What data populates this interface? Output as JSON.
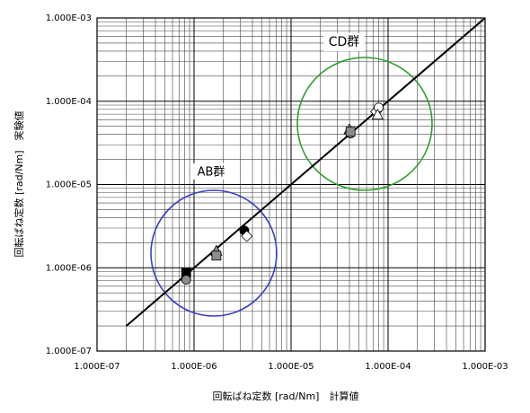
{
  "chart_data": {
    "type": "scatter",
    "log_scale": {
      "x": true,
      "y": true
    },
    "grid": true,
    "x_label": "回転ばね定数 [rad/Nm]　計算値",
    "y_label": "回転ばね定数 [rad/Nm]　実験値",
    "annotations": [
      "AB群",
      "CD群"
    ],
    "annotation_colors": [
      "#3a3fc4",
      "#2aa02a"
    ],
    "xlim": [
      1e-07,
      0.001
    ],
    "ylim": [
      1e-07,
      0.001
    ],
    "xticks": [
      {
        "value": 1e-07,
        "label": "1.000E-07"
      },
      {
        "value": 1e-06,
        "label": "1.000E-06"
      },
      {
        "value": 1e-05,
        "label": "1.000E-05"
      },
      {
        "value": 0.0001,
        "label": "1.000E-04"
      },
      {
        "value": 0.001,
        "label": "1.000E-03"
      }
    ],
    "yticks": [
      {
        "value": 1e-07,
        "label": "1.000E-07"
      },
      {
        "value": 1e-06,
        "label": "1.000E-06"
      },
      {
        "value": 1e-05,
        "label": "1.000E-05"
      },
      {
        "value": 0.0001,
        "label": "1.000E-04"
      },
      {
        "value": 0.001,
        "label": "1.000E-03"
      }
    ],
    "reference_line": {
      "x": [
        2e-07,
        0.001
      ],
      "values": [
        2e-07,
        0.001
      ],
      "color": "#000000"
    },
    "series": [
      {
        "marker": "square",
        "color": "#000000",
        "x": [
          8.3e-07
        ],
        "values": [
          8.8e-07
        ]
      },
      {
        "marker": "circle",
        "color": "#8c8c8c",
        "x": [
          8.3e-07,
          4.1e-05
        ],
        "values": [
          7.2e-07,
          4.1e-05
        ]
      },
      {
        "marker": "triangle",
        "color": "#8c8c8c",
        "x": [
          1.7e-06,
          4e-05
        ],
        "values": [
          1.6e-06,
          4.6e-05
        ]
      },
      {
        "marker": "square",
        "color": "#8c8c8c",
        "x": [
          1.7e-06,
          4.1e-05
        ],
        "values": [
          1.4e-06,
          4.3e-05
        ]
      },
      {
        "marker": "circle",
        "color": "#000000",
        "x": [
          3.3e-06
        ],
        "values": [
          2.8e-06
        ]
      },
      {
        "marker": "diamond",
        "color": "#ffffff",
        "x": [
          3.5e-06,
          7.5e-05
        ],
        "values": [
          2.4e-06,
          7.5e-05
        ]
      },
      {
        "marker": "circle",
        "color": "#ffffff",
        "x": [
          8e-05
        ],
        "values": [
          8.4e-05
        ]
      },
      {
        "marker": "triangle",
        "color": "#ffffff",
        "x": [
          7.8e-05
        ],
        "values": [
          6.9e-05
        ]
      }
    ]
  }
}
